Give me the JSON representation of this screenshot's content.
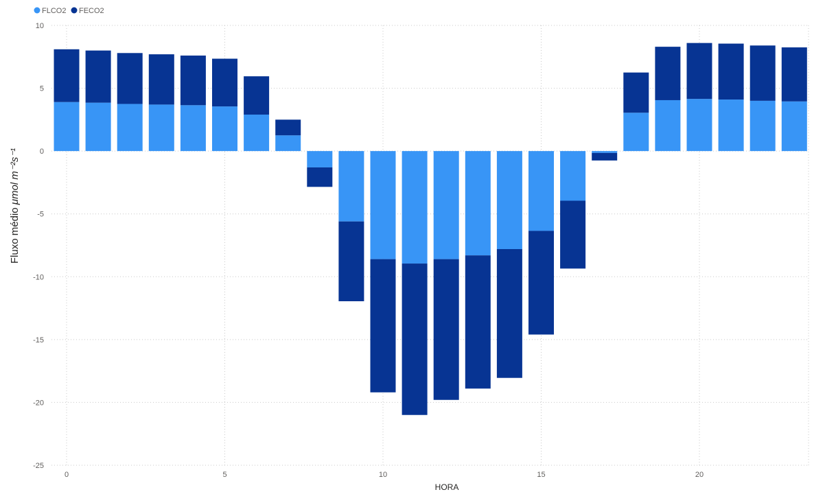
{
  "chart_data": {
    "type": "bar",
    "stacked": true,
    "x": [
      0,
      1,
      2,
      3,
      4,
      5,
      6,
      7,
      8,
      9,
      10,
      11,
      12,
      13,
      14,
      15,
      16,
      17,
      18,
      19,
      20,
      21,
      22,
      23
    ],
    "x_ticks": [
      0,
      5,
      10,
      15,
      20
    ],
    "series": [
      {
        "name": "FLCO2",
        "color": "#3895f6",
        "values": [
          3.9,
          3.85,
          3.75,
          3.7,
          3.65,
          3.55,
          2.9,
          1.25,
          -1.3,
          -5.6,
          -8.6,
          -8.95,
          -8.6,
          -8.3,
          -7.8,
          -6.35,
          -3.95,
          -0.15,
          3.05,
          4.05,
          4.15,
          4.1,
          4.0,
          3.95
        ]
      },
      {
        "name": "FECO2",
        "color": "#073493",
        "values": [
          4.2,
          4.15,
          4.05,
          4.0,
          3.95,
          3.8,
          3.05,
          1.25,
          -1.55,
          -6.35,
          -10.6,
          -12.05,
          -11.2,
          -10.6,
          -10.25,
          -8.25,
          -5.4,
          -0.6,
          3.2,
          4.25,
          4.45,
          4.45,
          4.4,
          4.3
        ]
      }
    ],
    "y_ticks": [
      10,
      5,
      0,
      -5,
      -10,
      -15,
      -20,
      -25
    ],
    "ylim": [
      -25,
      10
    ],
    "xlabel": "HORA",
    "ylabel_text": "Fluxo médio ",
    "ylabel_unit": "μmol m⁻²s⁻¹",
    "grid": true,
    "legend_position": "top-left"
  }
}
